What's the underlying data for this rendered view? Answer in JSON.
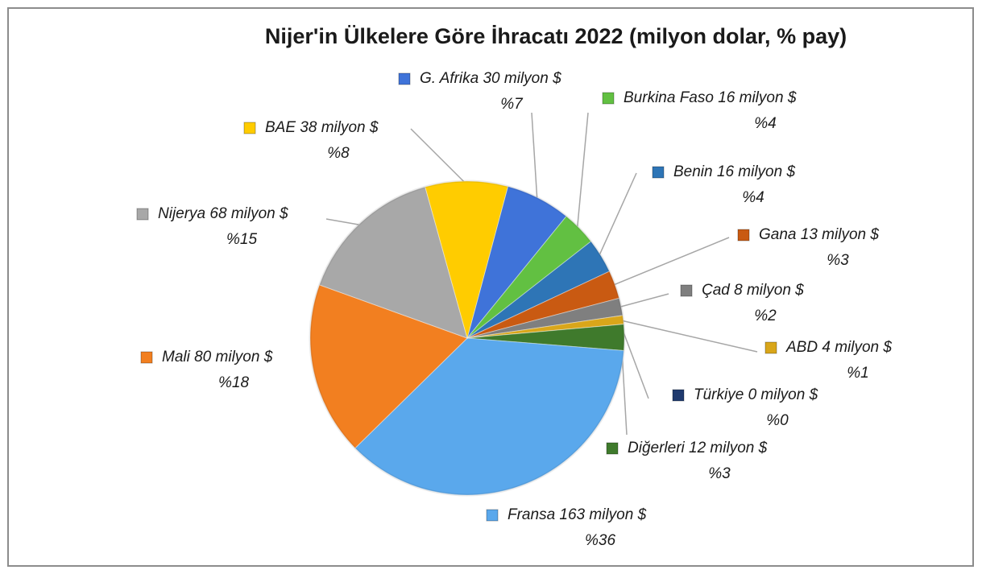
{
  "chart_data": {
    "type": "pie",
    "title": "Nijer'in Ülkelere Göre İhracatı 2022 (milyon dolar, % pay)",
    "categories": [
      "G. Afrika 30 milyon $",
      "Burkina Faso 16 milyon $",
      "Benin 16 milyon $",
      "Gana 13 milyon $",
      "Çad 8 milyon $",
      "ABD 4 milyon $",
      "Türkiye 0 milyon $",
      "Diğerleri 12 milyon $",
      "Fransa 163 milyon $",
      "Mali 80 milyon $",
      "Nijerya 68 milyon $",
      "BAE 38 milyon $"
    ],
    "values": [
      30,
      16,
      16,
      13,
      8,
      4,
      0,
      12,
      163,
      80,
      68,
      38
    ],
    "percent_labels": [
      "%7",
      "%4",
      "%4",
      "%3",
      "%2",
      "%1",
      "%0",
      "%3",
      "%36",
      "%18",
      "%15",
      "%8"
    ],
    "colors": [
      "#3f73d9",
      "#62c042",
      "#2e75b6",
      "#c95a12",
      "#7f7f7f",
      "#d9a61a",
      "#1f3a6e",
      "#3f7a2c",
      "#5aa8ec",
      "#f27f20",
      "#a8a8a8",
      "#ffcc00"
    ]
  }
}
